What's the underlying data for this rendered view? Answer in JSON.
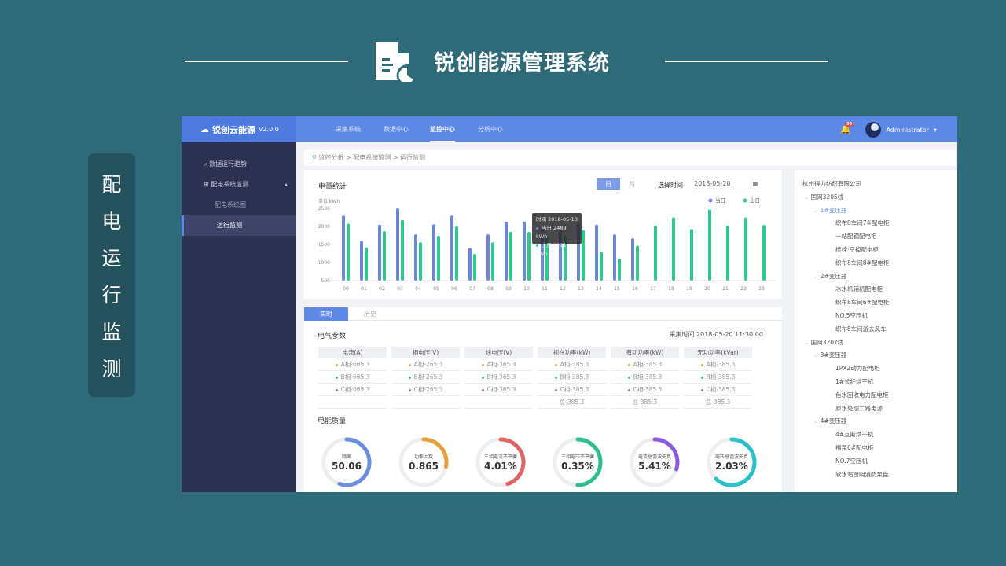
{
  "slide": {
    "title": "锐创能源管理系统",
    "side_label": [
      "配",
      "电",
      "运",
      "行",
      "监",
      "测"
    ]
  },
  "app": {
    "logo": "锐创云能源",
    "version": "V2.0.0",
    "nav": [
      "采集系统",
      "数据中心",
      "监控中心",
      "分析中心"
    ],
    "nav_active": 2,
    "notification_count": "99",
    "user": "Administrator",
    "sidebar": [
      {
        "label": "数据运行趋势",
        "icon": "chart-icon"
      },
      {
        "label": "配电系统监测",
        "icon": "monitor-icon",
        "expanded": true
      },
      {
        "label": "配电系统图",
        "sub": true
      },
      {
        "label": "运行监测",
        "sub": true,
        "active": true
      }
    ],
    "breadcrumb": "监控分析 > 配电系统监测 > 运行监测",
    "energy": {
      "title": "电量统计",
      "tabs": [
        "日",
        "月"
      ],
      "tab_active": 0,
      "date_label": "选择时间",
      "date": "2018-05-20",
      "calendar_icon": "calendar-icon",
      "tooltip": {
        "time": "时间 2018-05-10",
        "today": "当日 2489 kWh",
        "yesterday": "上日 2211 kWh"
      }
    },
    "params_tabs": [
      "实时",
      "历史"
    ],
    "params": {
      "title": "电气参数",
      "collect_label": "采集时间",
      "collect_time": "2018-05-20  11:30:00",
      "columns": [
        "电流(A)",
        "相电压(V)",
        "线电压(V)",
        "视在功率(kW)",
        "有功功率(kW)",
        "无功功率(kVar)"
      ],
      "rows": [
        [
          "A相-665.3",
          "A相-265.3",
          "A相-365.3",
          "A相-385.3",
          "A相-385.3",
          "A相-385.3"
        ],
        [
          "B相-665.3",
          "B相-265.3",
          "B相-365.3",
          "B相-385.3",
          "B相-385.3",
          "B相-385.3"
        ],
        [
          "C相-665.3",
          "C相-265.3",
          "C相-365.3",
          "C相-385.3",
          "C相-385.3",
          "C相-385.3"
        ],
        [
          "",
          "",
          "",
          "总-385.3",
          "总-385.3",
          "总-385.3"
        ]
      ],
      "phase_colors": [
        "#e8b04a",
        "#3cbf9a",
        "#e06a6a"
      ]
    },
    "quality": {
      "title": "电能质量",
      "gauges": [
        {
          "label": "频率",
          "value": "50.06",
          "fraction": 0.55,
          "color": "#6a8ee0"
        },
        {
          "label": "功率因数",
          "value": "0.865",
          "fraction": 0.28,
          "color": "#e8a03c"
        },
        {
          "label": "三相电流不平衡",
          "value": "4.01%",
          "fraction": 0.45,
          "color": "#e06464"
        },
        {
          "label": "三相电压不平衡",
          "value": "0.35%",
          "fraction": 0.5,
          "color": "#2dbf8c"
        },
        {
          "label": "电流总谐波失真",
          "value": "5.41%",
          "fraction": 0.3,
          "color": "#8c5ae0"
        },
        {
          "label": "电压总谐波失真",
          "value": "2.03%",
          "fraction": 0.62,
          "color": "#2cc0c8"
        }
      ]
    },
    "tree": [
      {
        "t": "杭州得力纺织有限公司",
        "l": 0
      },
      {
        "t": "国网3205线",
        "l": 1
      },
      {
        "t": "1#变压器",
        "l": 2,
        "sel": true
      },
      {
        "t": "织布8车间7#配电柜",
        "l": 3
      },
      {
        "t": "一站配钢配电柜",
        "l": 3
      },
      {
        "t": "梳栓·空掉配电柜",
        "l": 3
      },
      {
        "t": "织布8车间8#配电柜",
        "l": 3
      },
      {
        "t": "2#变压器",
        "l": 2
      },
      {
        "t": "冰水机辅机配电柜",
        "l": 3
      },
      {
        "t": "织布8车间6#配电柜",
        "l": 3
      },
      {
        "t": "NO.5空压机",
        "l": 3
      },
      {
        "t": "织布8车间游去风车",
        "l": 3
      },
      {
        "t": "国网3207线",
        "l": 1
      },
      {
        "t": "3#变压器",
        "l": 2
      },
      {
        "t": "1PX2动力配电柜",
        "l": 3
      },
      {
        "t": "1#长纤烘干机",
        "l": 3
      },
      {
        "t": "色水回收电力配电柜",
        "l": 3
      },
      {
        "t": "原水处理二路电源",
        "l": 3
      },
      {
        "t": "4#变压器",
        "l": 2
      },
      {
        "t": "4#互斯烘干机",
        "l": 3
      },
      {
        "t": "福泵6#配电柜",
        "l": 3
      },
      {
        "t": "NO.7空压机",
        "l": 3
      },
      {
        "t": "软水站厨明消防泵盘",
        "l": 3
      }
    ]
  },
  "chart_data": {
    "type": "bar",
    "ylabel": "单位  kWh",
    "ylim": [
      500,
      2500
    ],
    "yticks": [
      500,
      1000,
      1500,
      2000,
      2500
    ],
    "categories": [
      "00",
      "01",
      "02",
      "03",
      "04",
      "05",
      "06",
      "07",
      "08",
      "09",
      "10",
      "11",
      "12",
      "13",
      "14",
      "15",
      "16",
      "17",
      "18",
      "19",
      "20",
      "21",
      "22",
      "23"
    ],
    "series": [
      {
        "name": "当日",
        "color": "#6c86d8",
        "values": [
          2300,
          1600,
          2050,
          2500,
          1780,
          2060,
          2300,
          1400,
          1780,
          2130,
          2130,
          1950,
          1950,
          2100,
          2050,
          1780,
          1670,
          null,
          null,
          null,
          null,
          null,
          null,
          null
        ]
      },
      {
        "name": "上日",
        "color": "#2ec98f",
        "values": [
          2080,
          1420,
          1870,
          2180,
          1560,
          1740,
          2000,
          1240,
          1560,
          1850,
          1850,
          1700,
          1750,
          1900,
          1300,
          1110,
          1470,
          2020,
          2250,
          1930,
          2470,
          2020,
          2250,
          2040
        ]
      }
    ],
    "legend": "top-right",
    "grid": false
  }
}
